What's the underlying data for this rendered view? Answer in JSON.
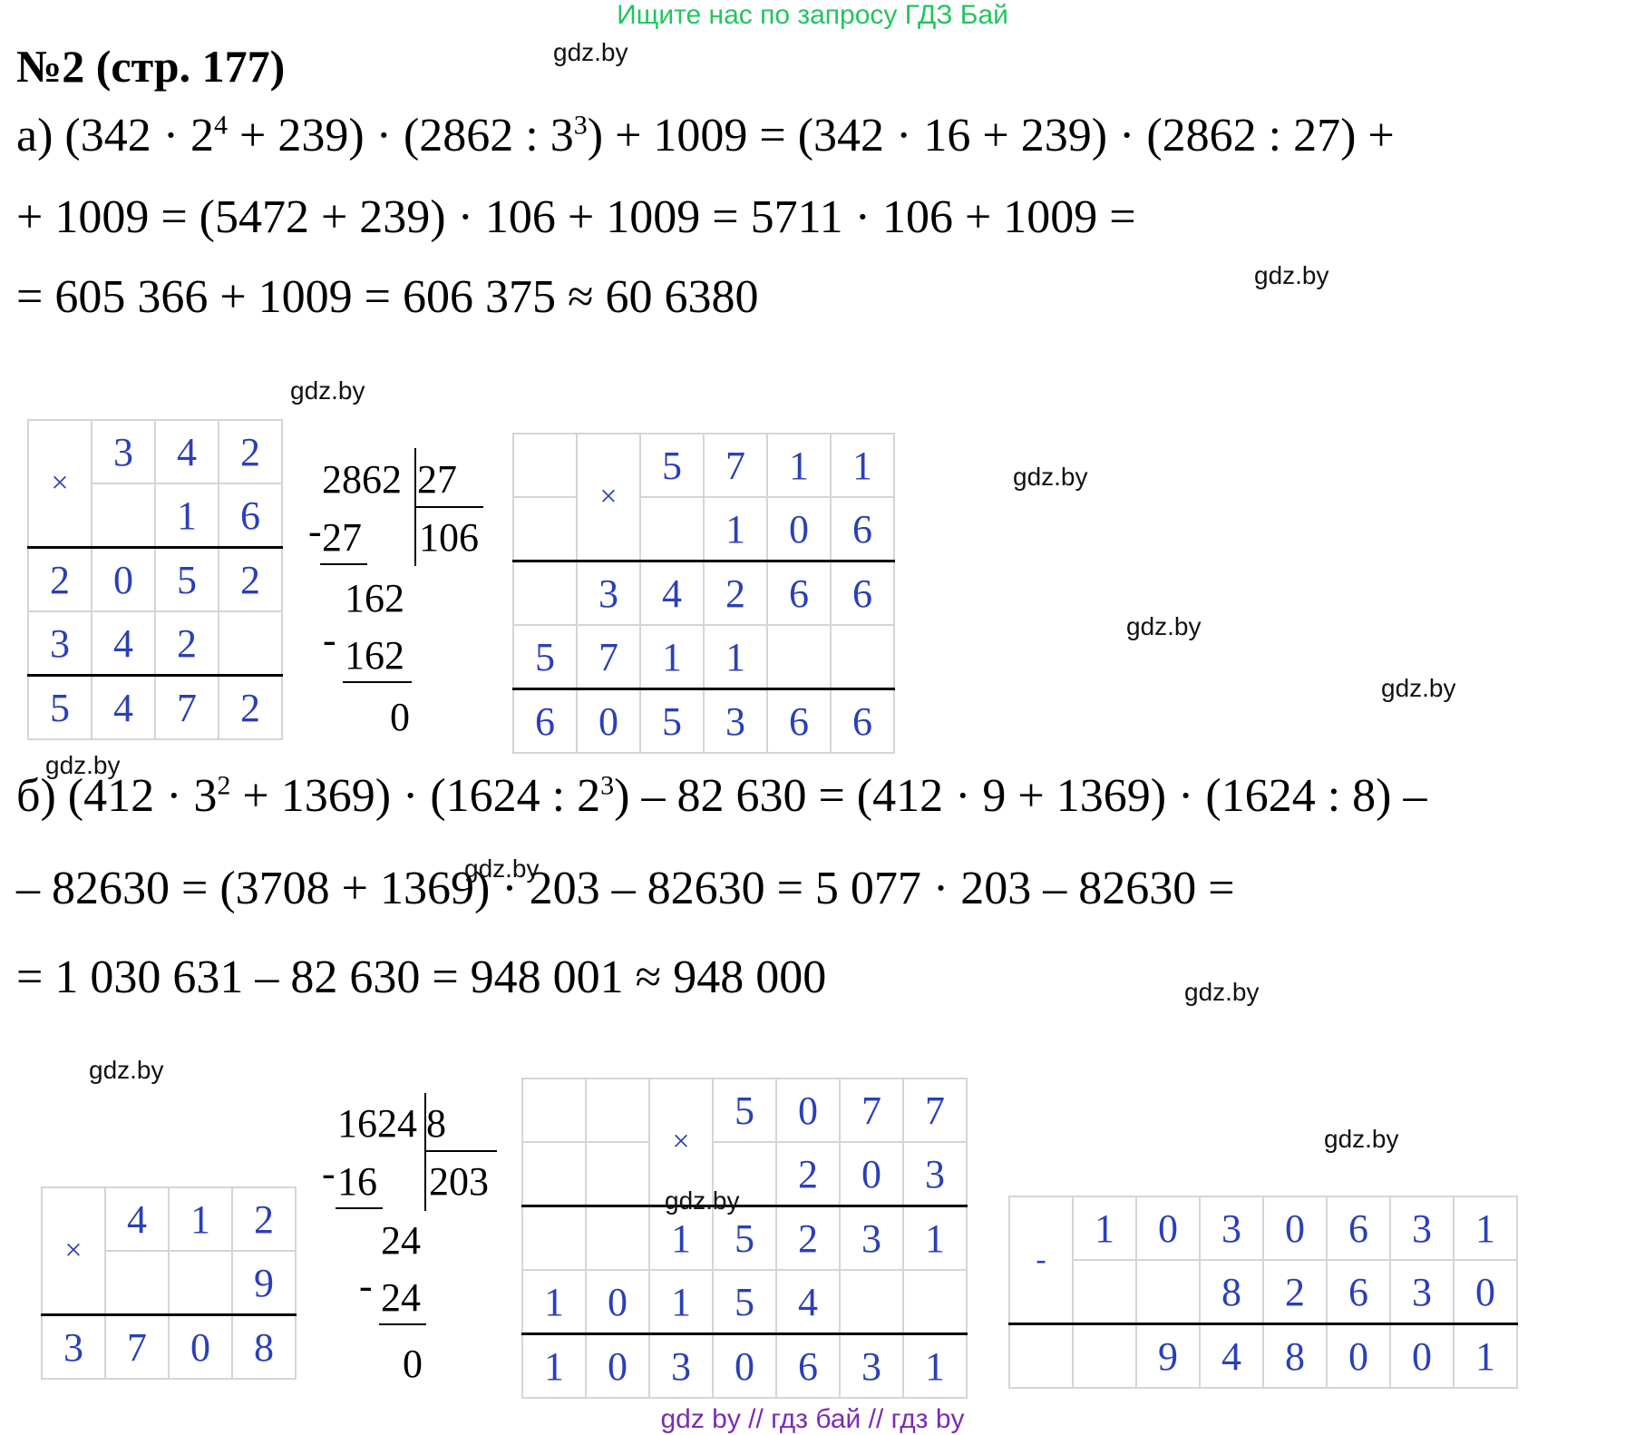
{
  "banner": "Ищите нас по запросу ГДЗ Бай",
  "watermark": "gdz.by",
  "title": "№2 (стр. 177)",
  "part_a": {
    "l1_pre": "а) (342 · 2",
    "l1_e1": "4",
    "l1_mid": " + 239) · (2862 : 3",
    "l1_e2": "3",
    "l1_post": ") + 1009 = (342 · 16 + 239) · (2862 : 27) +",
    "l2": "+ 1009 = (5472 + 239) · 106 + 1009 = 5711 · 106 + 1009 =",
    "l3": "= 605 366 + 1009 = 606 375 ≈ 60 6380",
    "mult1": {
      "sign": "×",
      "rows": [
        [
          "",
          "3",
          "4",
          "2"
        ],
        [
          "",
          "",
          "1",
          "6"
        ],
        [
          "2",
          "0",
          "5",
          "2"
        ],
        [
          "3",
          "4",
          "2",
          ""
        ],
        [
          "5",
          "4",
          "7",
          "2"
        ]
      ]
    },
    "div1": {
      "dividend": "2862",
      "divisor": "27",
      "quotient": "106",
      "s1": "27",
      "r1": "162",
      "s2": "162",
      "rem": "0",
      "minus": "-"
    },
    "mult2": {
      "sign": "×",
      "rows": [
        [
          "",
          "",
          "5",
          "7",
          "1",
          "1"
        ],
        [
          "",
          "",
          "",
          "1",
          "0",
          "6"
        ],
        [
          "",
          "3",
          "4",
          "2",
          "6",
          "6"
        ],
        [
          "5",
          "7",
          "1",
          "1",
          "",
          ""
        ],
        [
          "6",
          "0",
          "5",
          "3",
          "6",
          "6"
        ]
      ]
    }
  },
  "part_b": {
    "l1_pre": "б) (412 · 3",
    "l1_e1": "2",
    "l1_mid": " + 1369) · (1624 : 2",
    "l1_e2": "3",
    "l1_post": ") – 82 630 = (412 · 9 + 1369) · (1624 : 8) –",
    "l2": "– 82630 = (3708 + 1369) · 203 – 82630 = 5 077 · 203 – 82630 =",
    "l3": "= 1 030 631 – 82 630 = 948 001 ≈ 948 000",
    "mult1": {
      "sign": "×",
      "rows": [
        [
          "",
          "4",
          "1",
          "2"
        ],
        [
          "",
          "",
          "",
          "9"
        ],
        [
          "3",
          "7",
          "0",
          "8"
        ]
      ]
    },
    "div1": {
      "dividend": "1624",
      "divisor": "8",
      "quotient": "203",
      "s1": "16",
      "r1": "24",
      "s2": "24",
      "rem": "0",
      "minus": "-"
    },
    "mult2": {
      "sign": "×",
      "rows": [
        [
          "",
          "",
          "",
          "5",
          "0",
          "7",
          "7"
        ],
        [
          "",
          "",
          "",
          "",
          "2",
          "0",
          "3"
        ],
        [
          "",
          "",
          "1",
          "5",
          "2",
          "3",
          "1"
        ],
        [
          "1",
          "0",
          "1",
          "5",
          "4",
          "",
          ""
        ],
        [
          "1",
          "0",
          "3",
          "0",
          "6",
          "3",
          "1"
        ]
      ]
    },
    "sub1": {
      "sign": "-",
      "rows": [
        [
          "",
          "1",
          "0",
          "3",
          "0",
          "6",
          "3",
          "1"
        ],
        [
          "",
          "",
          "",
          "8",
          "2",
          "6",
          "3",
          "0"
        ],
        [
          "",
          "",
          "9",
          "4",
          "8",
          "0",
          "0",
          "1"
        ]
      ]
    }
  },
  "footer": "gdz by  //  гдз бай  //  гдз by"
}
